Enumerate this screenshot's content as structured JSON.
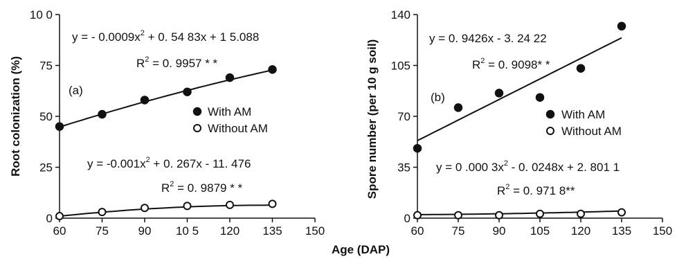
{
  "xlabel": "Age (DAP)",
  "chart_data": [
    {
      "type": "scatter",
      "panel": "(a)",
      "ylabel": "Root colonization (%)",
      "xlim": [
        60,
        150
      ],
      "ylim": [
        0,
        100
      ],
      "xticks": [
        60,
        75,
        90,
        105,
        120,
        135,
        150
      ],
      "yticks": [
        0,
        25,
        50,
        75,
        100
      ],
      "xtick_labels": [
        "60",
        "75",
        "90",
        "10 5",
        "120",
        "135",
        "150"
      ],
      "ytick_labels": [
        "0",
        "25",
        "50",
        "75",
        "10 0"
      ],
      "series": [
        {
          "name": "With AM",
          "marker": "filled-circle",
          "x": [
            60,
            75,
            90,
            105,
            120,
            135
          ],
          "y": [
            45,
            51,
            58,
            62,
            69,
            73
          ],
          "fit": {
            "a": -0.0009,
            "b": 0.5483,
            "c": 15.088
          }
        },
        {
          "name": "Without AM",
          "marker": "open-circle",
          "x": [
            60,
            75,
            90,
            105,
            120,
            135
          ],
          "y": [
            1,
            3,
            5,
            6,
            6.5,
            7
          ],
          "fit": {
            "a": -0.001,
            "b": 0.267,
            "c": -11.476
          }
        }
      ],
      "annotations": [
        {
          "eq_pre": "y = - 0.0009x",
          "eq_post": " + 0. 54 83x  + 1 5.088",
          "r2_pre": "R",
          "r2_post": " = 0. 9957 * *"
        },
        {
          "eq_pre": "y =  -0.001x",
          "eq_post": " + 0. 267x  - 11. 476",
          "r2_pre": "R",
          "r2_post": " = 0. 9879 * *"
        }
      ]
    },
    {
      "type": "scatter",
      "panel": "(b)",
      "ylabel": "Spore number (per 10 g soil)",
      "xlim": [
        60,
        150
      ],
      "ylim": [
        0,
        140
      ],
      "xticks": [
        60,
        75,
        90,
        105,
        120,
        135,
        150
      ],
      "yticks": [
        0,
        35,
        70,
        105,
        140
      ],
      "xtick_labels": [
        "60",
        "75",
        "90",
        "105",
        "120",
        "135",
        "150"
      ],
      "ytick_labels": [
        "0",
        "35",
        "70",
        "105",
        "140"
      ],
      "series": [
        {
          "name": "With AM",
          "marker": "filled-circle",
          "x": [
            60,
            75,
            90,
            105,
            120,
            135
          ],
          "y": [
            48,
            76,
            86,
            83,
            103,
            132
          ],
          "fit": {
            "a": 0,
            "b": 0.9426,
            "c": -3.2422
          }
        },
        {
          "name": "Without AM",
          "marker": "open-circle",
          "x": [
            60,
            75,
            90,
            105,
            120,
            135
          ],
          "y": [
            2,
            2,
            2,
            3,
            3,
            4
          ],
          "fit": {
            "a": 0.0003,
            "b": -0.0248,
            "c": 2.8011
          }
        }
      ],
      "annotations": [
        {
          "eq_pre": "y = 0. 9426x  - 3. 24 22",
          "eq_post": "",
          "r2_pre": "R",
          "r2_post": " = 0. 9098*  *"
        },
        {
          "eq_pre": "y = 0 .000 3x",
          "eq_post": " - 0. 0248x  + 2. 801 1",
          "r2_pre": "R",
          "r2_post": " = 0. 971 8**"
        }
      ]
    }
  ],
  "sup_2": "2"
}
